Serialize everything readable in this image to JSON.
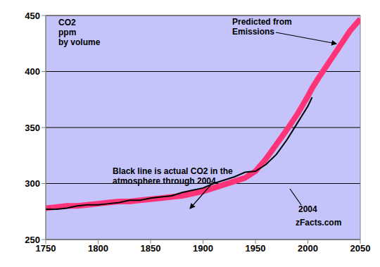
{
  "chart_data": {
    "type": "line",
    "ylabel": "CO2\nppm\nby volume",
    "annotations": [
      "Predicted from\nEmissions",
      "Black line is actual CO2 in the\natmosphere through 2004.",
      "2004",
      "zFacts.com"
    ],
    "x": [
      1750,
      1760,
      1770,
      1780,
      1790,
      1800,
      1810,
      1820,
      1830,
      1840,
      1850,
      1860,
      1870,
      1880,
      1890,
      1900,
      1910,
      1920,
      1930,
      1940,
      1950,
      1960,
      1970,
      1980,
      1990,
      2000,
      2004,
      2010,
      2020,
      2030,
      2040,
      2050
    ],
    "series": [
      {
        "color": "#ff3377",
        "values": [
          278,
          279,
          280,
          280,
          281,
          282,
          283,
          284,
          284,
          285,
          286,
          287,
          288,
          289,
          291,
          293,
          296,
          299,
          302,
          305,
          311,
          322,
          335,
          348,
          362,
          378,
          385,
          394,
          408,
          422,
          436,
          447
        ]
      },
      {
        "color": "#000000",
        "values": [
          277,
          277,
          278,
          280,
          281,
          281,
          282,
          283,
          285,
          285,
          287,
          288,
          289,
          292,
          294,
          296,
          300,
          303,
          306,
          310,
          311,
          317,
          326,
          339,
          354,
          369,
          377,
          null,
          null,
          null,
          null,
          null
        ]
      }
    ],
    "xlim": [
      1750,
      2050
    ],
    "xticks": [
      1750,
      1800,
      1850,
      1900,
      1950,
      2000,
      2050
    ],
    "ylim": [
      250,
      450
    ],
    "yticks": [
      250,
      300,
      350,
      400,
      450
    ],
    "grid": true
  }
}
